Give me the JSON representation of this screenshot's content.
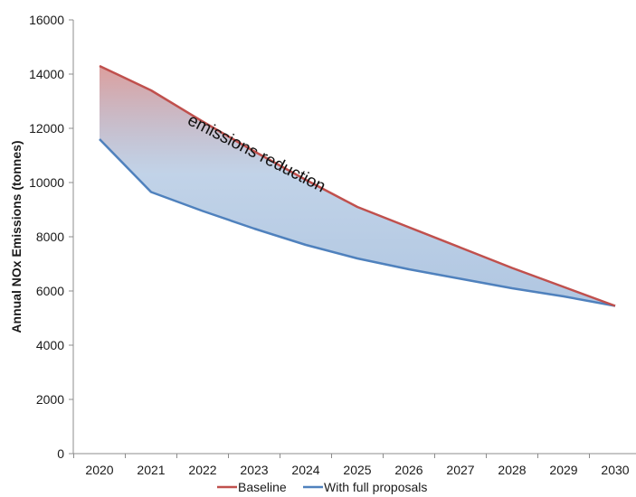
{
  "chart_data": {
    "type": "area",
    "title": "",
    "xlabel": "",
    "ylabel": "Annual NOx Emissions (tonnes)",
    "x": [
      "2020",
      "2021",
      "2022",
      "2023",
      "2024",
      "2025",
      "2026",
      "2027",
      "2028",
      "2029",
      "2030"
    ],
    "ylim": [
      0,
      16000
    ],
    "yticks": [
      0,
      2000,
      4000,
      6000,
      8000,
      10000,
      12000,
      14000,
      16000
    ],
    "grid": false,
    "legend_position": "bottom",
    "series": [
      {
        "name": "Baseline",
        "color": "#c0504d",
        "values": [
          14300,
          13400,
          12250,
          11150,
          10100,
          9100,
          8350,
          7600,
          6850,
          6150,
          5450
        ]
      },
      {
        "name": "With full proposals",
        "color": "#4f81bd",
        "values": [
          11600,
          9650,
          8950,
          8300,
          7700,
          7200,
          6800,
          6450,
          6100,
          5800,
          5450
        ]
      }
    ],
    "fill_between": {
      "top_color": "#c0504d",
      "bottom_color": "#4f81bd"
    },
    "annotations": [
      {
        "text": "emissions reduction",
        "x": "2023",
        "y": 10900,
        "rotation": 27
      }
    ]
  }
}
